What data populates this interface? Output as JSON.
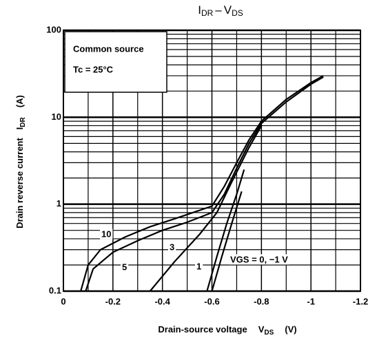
{
  "chart_data": {
    "type": "line",
    "title_parts": [
      "I",
      "DR",
      "–",
      "V",
      "DS"
    ],
    "ylabel_parts": [
      "Drain reverse current",
      "I",
      "DR",
      "(A)"
    ],
    "xlabel_parts": [
      "Drain-source voltage",
      "V",
      "DS",
      "(V)"
    ],
    "annotations": [
      "Common source",
      "Tc = 25°C"
    ],
    "log_y": true,
    "grid": true,
    "color": "#000000",
    "xlim": [
      0,
      -1.2
    ],
    "xticks": [
      0,
      -0.2,
      -0.4,
      -0.6,
      -0.8,
      -1,
      -1.2
    ],
    "ylim": [
      0.1,
      100
    ],
    "yticks": [
      0.1,
      1,
      10,
      100
    ],
    "series": [
      {
        "name": "10",
        "x": [
          -0.07,
          -0.1,
          -0.15,
          -0.25,
          -0.35,
          -0.45,
          -0.55,
          -0.6,
          -0.65,
          -0.7,
          -0.75,
          -0.8,
          -0.9,
          -1.0,
          -1.05
        ],
        "values": [
          0.1,
          0.2,
          0.3,
          0.42,
          0.55,
          0.68,
          0.85,
          0.95,
          1.6,
          3,
          5.5,
          9,
          16,
          25,
          30
        ]
      },
      {
        "name": "5",
        "x": [
          -0.09,
          -0.12,
          -0.2,
          -0.3,
          -0.4,
          -0.5,
          -0.6,
          -0.65,
          -0.7,
          -0.75,
          -0.8,
          -0.9,
          -1.0,
          -1.05
        ],
        "values": [
          0.1,
          0.18,
          0.28,
          0.38,
          0.5,
          0.62,
          0.8,
          1.3,
          2.6,
          5,
          8.5,
          15,
          24,
          29
        ]
      },
      {
        "name": "3",
        "x": [
          -0.35,
          -0.45,
          -0.55,
          -0.62,
          -0.68,
          -0.75,
          -0.8
        ],
        "values": [
          0.1,
          0.22,
          0.45,
          0.8,
          1.8,
          4.5,
          8
        ]
      },
      {
        "name": "1",
        "x": [
          -0.58,
          -0.62,
          -0.66,
          -0.7,
          -0.73
        ],
        "values": [
          0.1,
          0.25,
          0.6,
          1.3,
          2.5
        ]
      },
      {
        "name": "VGS = 0, −1 V",
        "x": [
          -0.6,
          -0.64,
          -0.68,
          -0.72
        ],
        "values": [
          0.1,
          0.25,
          0.6,
          1.4
        ]
      }
    ]
  }
}
